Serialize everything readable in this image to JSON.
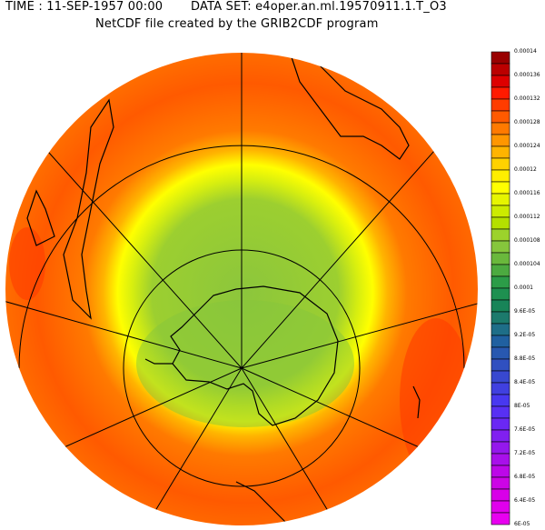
{
  "header": {
    "time": "TIME : 11-SEP-1957 00:00",
    "dataset": "DATA SET: e4oper.an.ml.19570911.1.T_O3",
    "subtitle": "NetCDF file created by the GRIB2CDF program"
  },
  "map": {
    "projection": "orthographic, south polar view",
    "variable": "O3",
    "colors": {
      "high": "#ff5a00",
      "mid": "#ffff00",
      "low": "#8cc63c"
    }
  },
  "colorbar": {
    "labels": [
      "0.00014",
      "0.000136",
      "0.000132",
      "0.000128",
      "0.000124",
      "0.00012",
      "0.000116",
      "0.000112",
      "0.000108",
      "0.000104",
      "0.0001",
      "9.6E-05",
      "9.2E-05",
      "8.8E-05",
      "8.4E-05",
      "8E-05",
      "7.6E-05",
      "7.2E-05",
      "6.8E-05",
      "6.4E-05",
      "6E-05"
    ],
    "colors": [
      "#990000",
      "#bb0000",
      "#dd0000",
      "#ff1a00",
      "#ff3c00",
      "#ff5a00",
      "#ff7a00",
      "#ff9600",
      "#ffb400",
      "#ffd200",
      "#ffee00",
      "#ffff00",
      "#e6f500",
      "#cceb00",
      "#b4e000",
      "#9cd22c",
      "#86c63c",
      "#6ab83c",
      "#4caa40",
      "#2c9c48",
      "#1e9050",
      "#188458",
      "#1c7a6c",
      "#1e6e88",
      "#2060a0",
      "#2858b0",
      "#3050c0",
      "#3848d0",
      "#4040e0",
      "#4838f0",
      "#5830f4",
      "#6a28f4",
      "#8020f0",
      "#9418ec",
      "#a810ea",
      "#bc08e8",
      "#cc04e6",
      "#d800e8",
      "#e000ec",
      "#e800f0"
    ]
  }
}
